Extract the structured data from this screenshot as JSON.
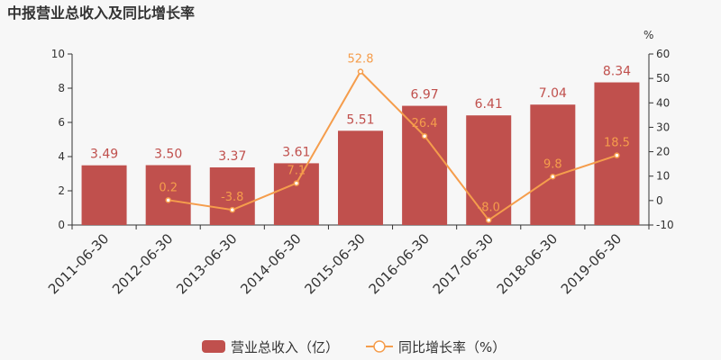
{
  "title": "中报营业总收入及同比增长率",
  "chart_data": {
    "type": "bar",
    "categories": [
      "2011-06-30",
      "2012-06-30",
      "2013-06-30",
      "2014-06-30",
      "2015-06-30",
      "2016-06-30",
      "2017-06-30",
      "2018-06-30",
      "2019-06-30"
    ],
    "series": [
      {
        "name": "营业总收入（亿）",
        "type": "bar",
        "axis": "left",
        "values": [
          3.49,
          3.5,
          3.37,
          3.61,
          5.51,
          6.97,
          6.41,
          7.04,
          8.34
        ],
        "labels": [
          "3.49",
          "3.50",
          "3.37",
          "3.61",
          "5.51",
          "6.97",
          "6.41",
          "7.04",
          "8.34"
        ]
      },
      {
        "name": "同比增长率（%）",
        "type": "line",
        "axis": "right",
        "values": [
          null,
          0.2,
          -3.8,
          7.1,
          52.8,
          26.4,
          -8.0,
          9.8,
          18.5
        ],
        "labels": [
          null,
          "0.2",
          "-3.8",
          "7.1",
          "52.8",
          "26.4",
          "-8.0",
          "9.8",
          "18.5"
        ]
      }
    ],
    "y_left": {
      "ylim": [
        0,
        10
      ],
      "ticks": [
        "0",
        "2",
        "4",
        "6",
        "8",
        "10"
      ]
    },
    "y_right": {
      "ylim": [
        -10,
        60
      ],
      "ticks": [
        "-10",
        "0",
        "10",
        "20",
        "30",
        "40",
        "50",
        "60"
      ],
      "unit": "%"
    },
    "grid": false,
    "legend": "bottom-center",
    "colors": {
      "bar": "#c0504d",
      "line": "#f59d4c",
      "axis": "#333333",
      "background": "#f7f7f7"
    }
  }
}
